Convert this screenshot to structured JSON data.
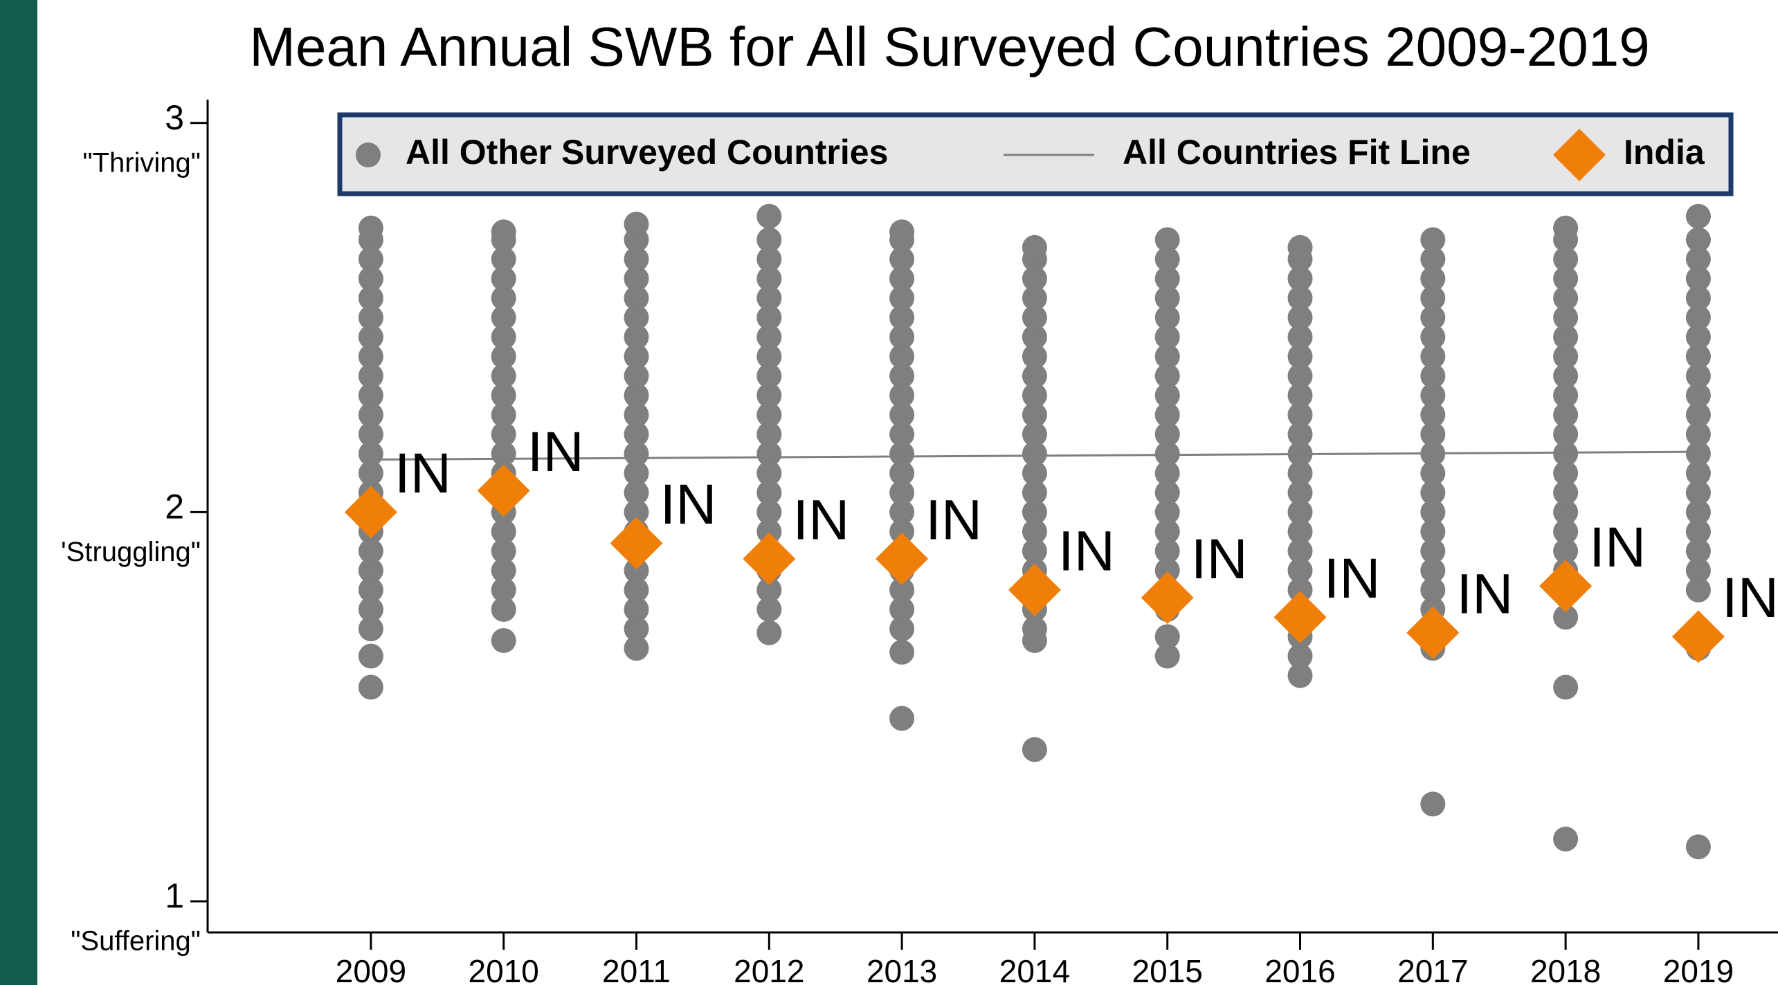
{
  "chart_data": {
    "type": "scatter",
    "title": "Mean Annual SWB for All Surveyed Countries 2009-2019",
    "xlim": [
      2007.77,
      2019.6
    ],
    "xticks": [
      2009,
      2010,
      2011,
      2012,
      2013,
      2014,
      2015,
      2016,
      2017,
      2018,
      2019
    ],
    "ylim": [
      0.92,
      3.06
    ],
    "yticks": [
      1,
      2,
      3
    ],
    "ytick_names": [
      "\"Suffering\"",
      "'Struggling\"",
      "\"Thriving\""
    ],
    "grid": false,
    "legend": "top",
    "series": [
      {
        "name": "All Other Surveyed Countries",
        "color": "#7f7f7f",
        "groups": [
          {
            "x": 2009,
            "values": [
              1.55,
              1.63,
              1.7,
              1.75,
              1.8,
              1.85,
              1.9,
              1.95,
              2,
              2.05,
              2.1,
              2.15,
              2.2,
              2.25,
              2.3,
              2.35,
              2.4,
              2.45,
              2.5,
              2.55,
              2.6,
              2.65,
              2.7,
              2.73
            ]
          },
          {
            "x": 2010,
            "values": [
              1.67,
              1.75,
              1.8,
              1.85,
              1.9,
              1.95,
              2,
              2.05,
              2.1,
              2.15,
              2.2,
              2.25,
              2.3,
              2.35,
              2.4,
              2.45,
              2.5,
              2.55,
              2.6,
              2.65,
              2.7,
              2.72
            ]
          },
          {
            "x": 2011,
            "values": [
              1.65,
              1.7,
              1.75,
              1.8,
              1.85,
              1.9,
              1.95,
              2,
              2.05,
              2.1,
              2.15,
              2.2,
              2.25,
              2.3,
              2.35,
              2.4,
              2.45,
              2.5,
              2.55,
              2.6,
              2.65,
              2.7,
              2.74
            ]
          },
          {
            "x": 2012,
            "values": [
              1.69,
              1.75,
              1.8,
              1.85,
              1.9,
              1.95,
              2,
              2.05,
              2.1,
              2.15,
              2.2,
              2.25,
              2.3,
              2.35,
              2.4,
              2.45,
              2.5,
              2.55,
              2.6,
              2.65,
              2.7,
              2.76
            ]
          },
          {
            "x": 2013,
            "values": [
              1.47,
              1.64,
              1.7,
              1.75,
              1.8,
              1.85,
              1.9,
              1.95,
              2,
              2.05,
              2.1,
              2.15,
              2.2,
              2.25,
              2.3,
              2.35,
              2.4,
              2.45,
              2.5,
              2.55,
              2.6,
              2.65,
              2.7,
              2.72
            ]
          },
          {
            "x": 2014,
            "values": [
              1.39,
              1.67,
              1.7,
              1.75,
              1.8,
              1.85,
              1.9,
              1.95,
              2,
              2.05,
              2.1,
              2.15,
              2.2,
              2.25,
              2.3,
              2.35,
              2.4,
              2.45,
              2.5,
              2.55,
              2.6,
              2.65,
              2.68
            ]
          },
          {
            "x": 2015,
            "values": [
              1.63,
              1.68,
              1.75,
              1.8,
              1.85,
              1.9,
              1.95,
              2,
              2.05,
              2.1,
              2.15,
              2.2,
              2.25,
              2.3,
              2.35,
              2.4,
              2.45,
              2.5,
              2.55,
              2.6,
              2.65,
              2.7
            ]
          },
          {
            "x": 2016,
            "values": [
              1.58,
              1.63,
              1.68,
              1.75,
              1.8,
              1.85,
              1.9,
              1.95,
              2,
              2.05,
              2.1,
              2.15,
              2.2,
              2.25,
              2.3,
              2.35,
              2.4,
              2.45,
              2.5,
              2.55,
              2.6,
              2.65,
              2.68
            ]
          },
          {
            "x": 2017,
            "values": [
              1.25,
              1.65,
              1.7,
              1.75,
              1.8,
              1.85,
              1.9,
              1.95,
              2,
              2.05,
              2.1,
              2.15,
              2.2,
              2.25,
              2.3,
              2.35,
              2.4,
              2.45,
              2.5,
              2.55,
              2.6,
              2.65,
              2.7
            ]
          },
          {
            "x": 2018,
            "values": [
              1.16,
              1.55,
              1.73,
              1.8,
              1.85,
              1.9,
              1.95,
              2,
              2.05,
              2.1,
              2.15,
              2.2,
              2.25,
              2.3,
              2.35,
              2.4,
              2.45,
              2.5,
              2.55,
              2.6,
              2.65,
              2.7,
              2.73
            ]
          },
          {
            "x": 2019,
            "values": [
              1.14,
              1.65,
              1.7,
              1.8,
              1.85,
              1.9,
              1.95,
              2,
              2.05,
              2.1,
              2.15,
              2.2,
              2.25,
              2.3,
              2.35,
              2.4,
              2.45,
              2.5,
              2.55,
              2.6,
              2.65,
              2.7,
              2.76
            ]
          }
        ]
      },
      {
        "name": "All Countries Fit Line",
        "color": "#7f7f7f",
        "x": [
          2009,
          2019
        ],
        "values": [
          2.135,
          2.155
        ]
      },
      {
        "name": "India",
        "color": "#f07f0a",
        "x": [
          2009,
          2010,
          2011,
          2012,
          2013,
          2014,
          2015,
          2016,
          2017,
          2018,
          2019
        ],
        "values": [
          2.0,
          2.055,
          1.92,
          1.88,
          1.88,
          1.8,
          1.78,
          1.73,
          1.69,
          1.81,
          1.68
        ],
        "point_labels": [
          "IN",
          "IN",
          "IN",
          "IN",
          "IN",
          "IN",
          "IN",
          "IN",
          "IN",
          "IN",
          "IN"
        ]
      }
    ]
  }
}
